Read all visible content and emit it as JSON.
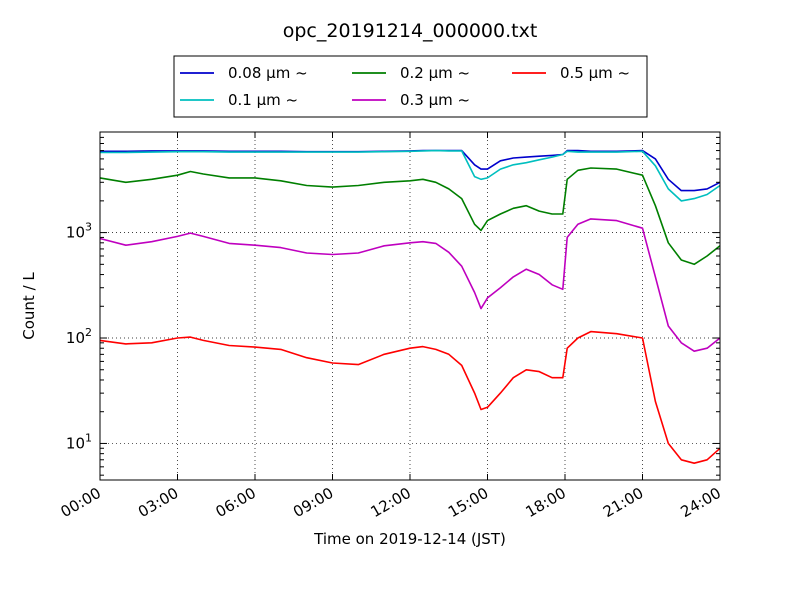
{
  "chart_data": {
    "type": "line",
    "title": "opc_20191214_000000.txt",
    "xlabel": "Time on 2019-12-14 (JST)",
    "ylabel": "Count / L",
    "y_scale": "log",
    "ylim": [
      4.5,
      9000
    ],
    "xlim": [
      "00:00",
      "24:00"
    ],
    "grid": true,
    "legend_position": "top-center",
    "x_tick_labels": [
      "00:00",
      "03:00",
      "06:00",
      "09:00",
      "12:00",
      "15:00",
      "18:00",
      "21:00",
      "24:00"
    ],
    "y_tick_labels": [
      {
        "base": "10",
        "exp": "1",
        "value": 10
      },
      {
        "base": "10",
        "exp": "2",
        "value": 100
      },
      {
        "base": "10",
        "exp": "3",
        "value": 1000
      }
    ],
    "x": [
      "00:00",
      "01:00",
      "02:00",
      "03:00",
      "03:30",
      "04:00",
      "05:00",
      "06:00",
      "07:00",
      "08:00",
      "09:00",
      "10:00",
      "11:00",
      "12:00",
      "12:30",
      "13:00",
      "13:30",
      "14:00",
      "14:30",
      "14:45",
      "15:00",
      "15:30",
      "16:00",
      "16:30",
      "17:00",
      "17:30",
      "17:55",
      "18:05",
      "18:30",
      "19:00",
      "20:00",
      "21:00",
      "21:30",
      "22:00",
      "22:30",
      "23:00",
      "23:30",
      "24:00"
    ],
    "series": [
      {
        "name": "0.08 μm ~",
        "color": "#0000cc",
        "values": [
          5900,
          5900,
          5950,
          5950,
          5950,
          5950,
          5900,
          5900,
          5900,
          5850,
          5850,
          5850,
          5900,
          5950,
          6000,
          6000,
          6000,
          6000,
          4400,
          4000,
          4000,
          4800,
          5100,
          5200,
          5300,
          5400,
          5500,
          6000,
          6000,
          5900,
          5900,
          6000,
          5000,
          3200,
          2500,
          2500,
          2600,
          3000
        ]
      },
      {
        "name": "0.1 μm ~",
        "color": "#00bfbf",
        "values": [
          5750,
          5750,
          5800,
          5850,
          5850,
          5850,
          5800,
          5800,
          5800,
          5800,
          5800,
          5800,
          5850,
          5900,
          5950,
          6000,
          5950,
          5950,
          3400,
          3200,
          3300,
          4000,
          4400,
          4600,
          4900,
          5200,
          5500,
          5900,
          5800,
          5800,
          5800,
          5900,
          4300,
          2600,
          2000,
          2100,
          2300,
          2800
        ]
      },
      {
        "name": "0.2 μm ~",
        "color": "#007f00",
        "values": [
          3300,
          3000,
          3200,
          3500,
          3800,
          3600,
          3300,
          3300,
          3100,
          2800,
          2700,
          2800,
          3000,
          3100,
          3200,
          3000,
          2600,
          2100,
          1200,
          1050,
          1300,
          1500,
          1700,
          1800,
          1600,
          1500,
          1500,
          3200,
          3900,
          4100,
          4000,
          3500,
          1800,
          800,
          550,
          500,
          600,
          750
        ]
      },
      {
        "name": "0.3 μm ~",
        "color": "#bf00bf",
        "values": [
          880,
          760,
          820,
          920,
          990,
          920,
          790,
          760,
          720,
          640,
          620,
          640,
          750,
          800,
          820,
          790,
          650,
          480,
          270,
          190,
          240,
          300,
          380,
          450,
          400,
          320,
          290,
          900,
          1200,
          1350,
          1300,
          1100,
          380,
          130,
          90,
          75,
          80,
          100
        ]
      },
      {
        "name": "0.5 μm ~",
        "color": "#ff0000",
        "values": [
          95,
          88,
          90,
          100,
          102,
          95,
          85,
          82,
          78,
          65,
          58,
          56,
          70,
          80,
          83,
          78,
          70,
          55,
          30,
          21,
          22,
          30,
          42,
          50,
          48,
          42,
          42,
          80,
          100,
          115,
          110,
          100,
          25,
          10,
          7,
          6.5,
          7,
          9
        ]
      }
    ]
  }
}
